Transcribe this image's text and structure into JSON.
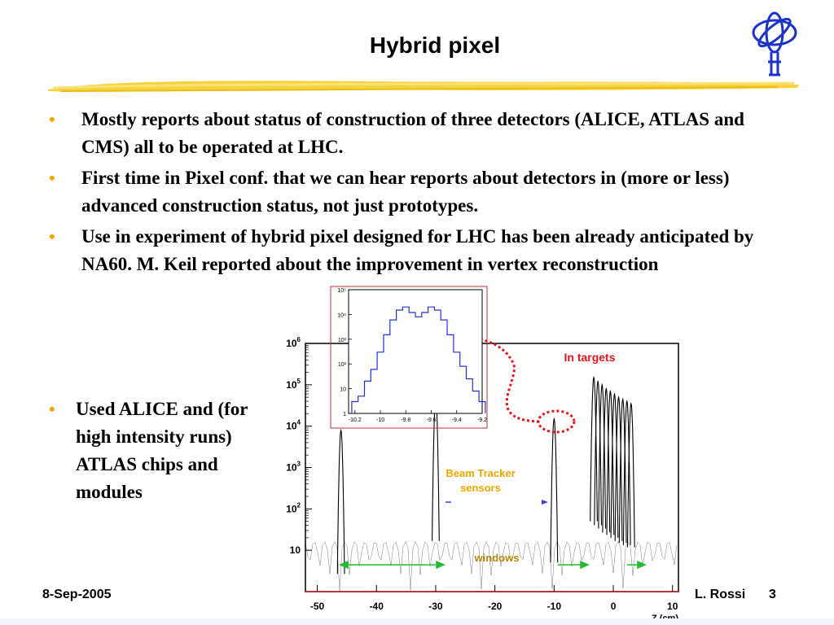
{
  "slide": {
    "title": "Hybrid pixel",
    "bullets": [
      "Mostly reports about status of construction of three detectors (ALICE, ATLAS and CMS) all to be operated at LHC.",
      "First time in Pixel conf. that we can hear reports about detectors in (more or less) advanced construction status, not just prototypes.",
      "Use in experiment of hybrid pixel designed for LHC has been already anticipated by NA60. M. Keil reported about the improvement in vertex reconstruction"
    ],
    "side_bullet": "Used ALICE and (for high intensity runs) ATLAS chips and modules",
    "bullet_char": "•",
    "footer_date": "8-Sep-2005",
    "footer_author": "L. Rossi",
    "page_number": "3"
  },
  "main_plot": {
    "x_ticks": [
      "-50",
      "-40",
      "-30",
      "-20",
      "-10",
      "0",
      "10"
    ],
    "y_ticks": [
      {
        "base": "10",
        "exp": ""
      },
      {
        "base": "10",
        "exp": "2"
      },
      {
        "base": "10",
        "exp": "3"
      },
      {
        "base": "10",
        "exp": "4"
      },
      {
        "base": "10",
        "exp": "5"
      },
      {
        "base": "10",
        "exp": "6"
      }
    ],
    "xlabel": "Z (cm)",
    "annotations": {
      "in_targets": "In targets",
      "beam_tracker_line1": "Beam Tracker",
      "beam_tracker_line2": "sensors",
      "windows": "windows"
    },
    "colors": {
      "in_targets": "#e8141b",
      "beam_tracker": "#f0a500",
      "windows": "#b8860b",
      "arrows": "#22bb33",
      "frame": "#c0303a"
    }
  },
  "inset_plot": {
    "x_ticks": [
      "-10.2",
      "-10",
      "-9.8",
      "-9.6",
      "-9.4",
      "-9.2"
    ],
    "y_ticks": [
      "1",
      "10",
      "10²",
      "10³",
      "10⁴",
      "10⁵"
    ],
    "color": "#2233dd"
  },
  "chart_data": [
    {
      "type": "line",
      "title": "",
      "xlabel": "Z (cm)",
      "ylabel": "",
      "xlim": [
        -52,
        11
      ],
      "ylim": [
        1,
        1000000
      ],
      "y_scale": "log",
      "series": [
        {
          "x": [
            -47,
            -46,
            -45.3,
            -44.5,
            -31,
            -30,
            -29.3,
            -28.5,
            -10.6,
            -10,
            -9.4,
            -8.5,
            -3.3,
            -2.6,
            -1.9,
            -1.2,
            -0.5,
            0.2,
            0.9,
            1.6,
            2.3,
            3.0
          ],
          "values": [
            10,
            8000,
            100,
            10,
            10,
            50000,
            100,
            10,
            10,
            15000,
            100,
            20,
            150000,
            120000,
            100000,
            80000,
            70000,
            60000,
            50000,
            45000,
            40000,
            35000
          ]
        }
      ]
    },
    {
      "type": "line",
      "title": "",
      "xlim": [
        -10.25,
        -9.2
      ],
      "ylim": [
        1,
        100000
      ],
      "y_scale": "log",
      "series": [
        {
          "x": [
            -10.2,
            -10.15,
            -10.1,
            -10.05,
            -10.0,
            -9.95,
            -9.9,
            -9.85,
            -9.8,
            -9.75,
            -9.7,
            -9.65,
            -9.6,
            -9.55,
            -9.5,
            -9.45,
            -9.4,
            -9.35,
            -9.3,
            -9.25,
            -9.2
          ],
          "values": [
            3,
            5,
            20,
            60,
            300,
            1500,
            6000,
            15000,
            20000,
            12000,
            8000,
            12000,
            20000,
            15000,
            6000,
            1500,
            300,
            80,
            25,
            8,
            3
          ]
        }
      ]
    }
  ]
}
